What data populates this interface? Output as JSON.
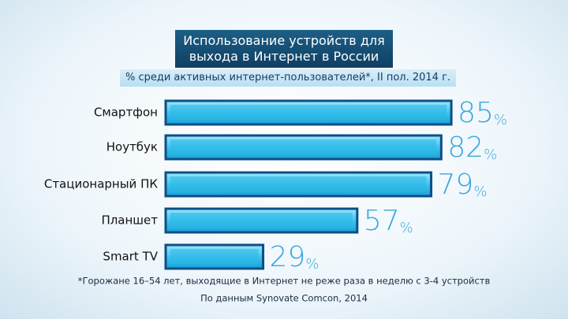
{
  "chart_data": {
    "type": "bar",
    "orientation": "horizontal",
    "title": "Использование устройств для выхода в Интернет в России",
    "subtitle": "% среди активных интернет-пользователей*, II пол. 2014 г.",
    "categories": [
      "Смартфон",
      "Ноутбук",
      "Стационарный ПК",
      "Планшет",
      "Smart TV"
    ],
    "values": [
      85,
      82,
      79,
      57,
      29
    ],
    "value_labels": [
      "85%",
      "82%",
      "79%",
      "57%",
      "29%"
    ],
    "color": "#2ab8e6",
    "footnote": "*Горожане 16–54 лет, выходящие в Интернет не реже раза в неделю с 3-4 устройств",
    "source": "По данным Synovate Comcon, 2014"
  }
}
